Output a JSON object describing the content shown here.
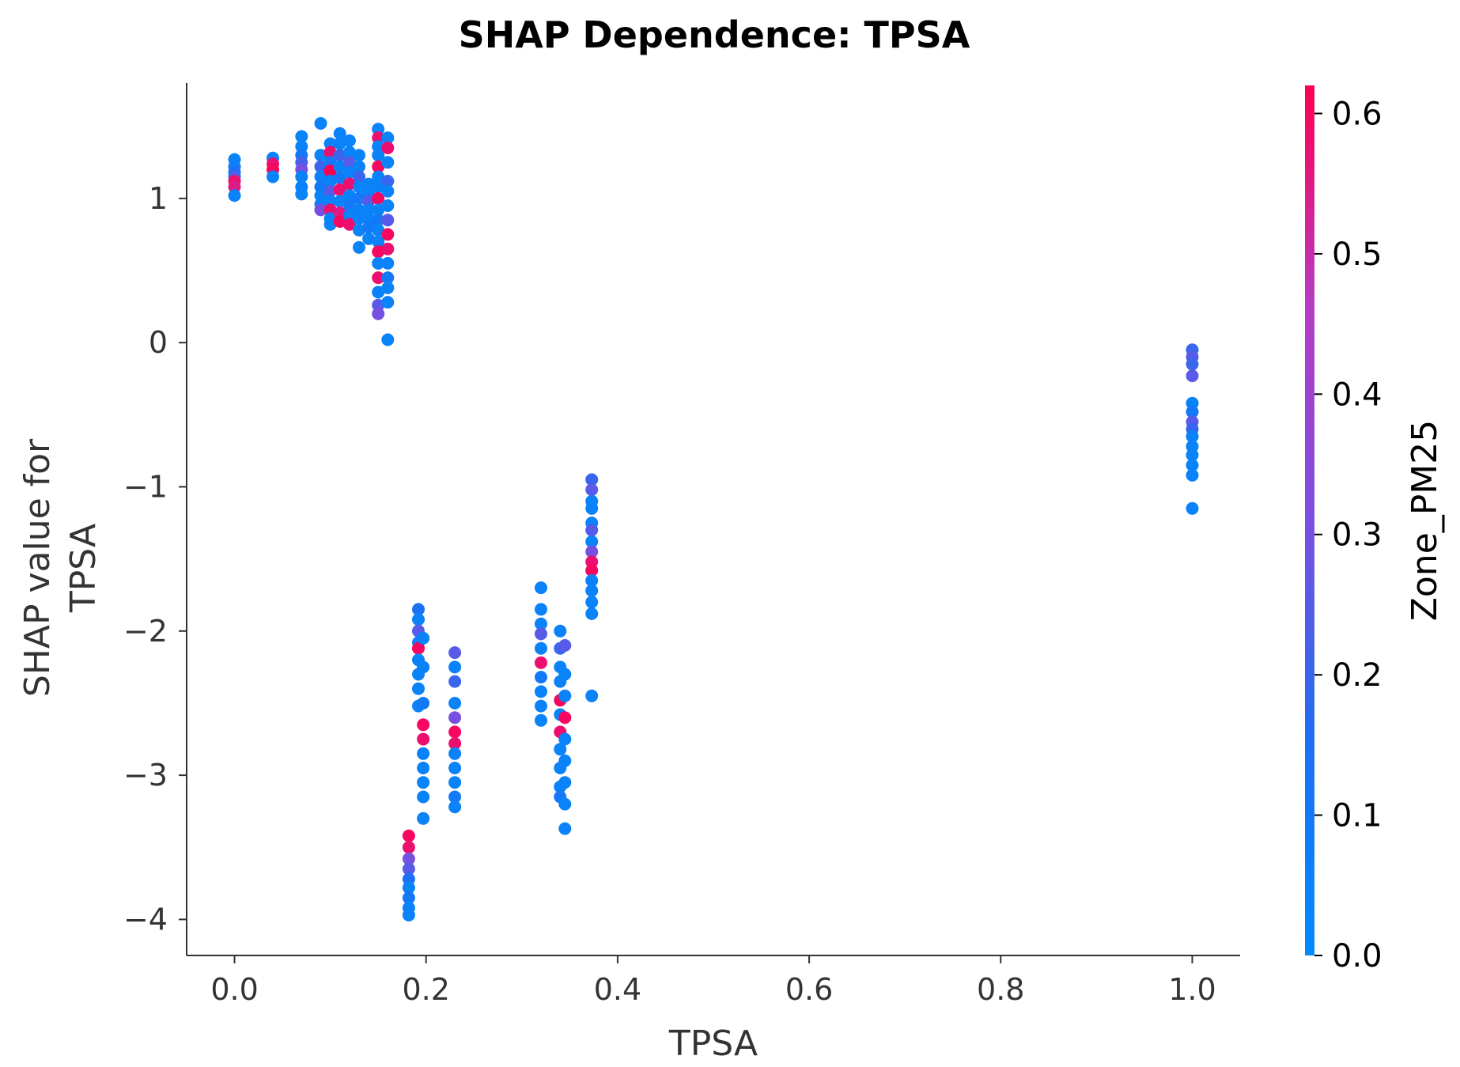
{
  "chart_data": {
    "type": "scatter",
    "title": "SHAP Dependence: TPSA",
    "xlabel": "TPSA",
    "ylabel_lines": [
      "SHAP value for",
      "TPSA"
    ],
    "xlim": [
      -0.05,
      1.05
    ],
    "ylim": [
      -4.25,
      1.8
    ],
    "xticks": [
      {
        "value": 0.0,
        "label": "0.0"
      },
      {
        "value": 0.2,
        "label": "0.2"
      },
      {
        "value": 0.4,
        "label": "0.4"
      },
      {
        "value": 0.6,
        "label": "0.6"
      },
      {
        "value": 0.8,
        "label": "0.8"
      },
      {
        "value": 1.0,
        "label": "1.0"
      }
    ],
    "yticks": [
      {
        "value": 1,
        "label": "1"
      },
      {
        "value": 0,
        "label": "0"
      },
      {
        "value": -1,
        "label": "−1"
      },
      {
        "value": -2,
        "label": "−2"
      },
      {
        "value": -3,
        "label": "−3"
      },
      {
        "value": -4,
        "label": "−4"
      }
    ],
    "grid": false,
    "colorbar": {
      "label": "Zone_PM25",
      "range": [
        0.0,
        0.62
      ],
      "ticks": [
        {
          "value": 0.0,
          "label": "0.0"
        },
        {
          "value": 0.1,
          "label": "0.1"
        },
        {
          "value": 0.2,
          "label": "0.2"
        },
        {
          "value": 0.3,
          "label": "0.3"
        },
        {
          "value": 0.4,
          "label": "0.4"
        },
        {
          "value": 0.5,
          "label": "0.5"
        },
        {
          "value": 0.6,
          "label": "0.6"
        }
      ],
      "colors": [
        "#008bfb",
        "#1e6ff3",
        "#7c4fe0",
        "#b73bc4",
        "#ff0051"
      ]
    },
    "points": [
      [
        0.0,
        1.27,
        0.05
      ],
      [
        0.0,
        1.22,
        0.08
      ],
      [
        0.0,
        1.18,
        0.15
      ],
      [
        0.0,
        1.15,
        0.22
      ],
      [
        0.0,
        1.12,
        0.58
      ],
      [
        0.0,
        1.08,
        0.55
      ],
      [
        0.0,
        1.02,
        0.05
      ],
      [
        0.04,
        1.28,
        0.05
      ],
      [
        0.04,
        1.24,
        0.58
      ],
      [
        0.04,
        1.2,
        0.6
      ],
      [
        0.04,
        1.15,
        0.05
      ],
      [
        0.07,
        1.43,
        0.05
      ],
      [
        0.07,
        1.36,
        0.05
      ],
      [
        0.07,
        1.3,
        0.1
      ],
      [
        0.07,
        1.25,
        0.22
      ],
      [
        0.07,
        1.2,
        0.3
      ],
      [
        0.07,
        1.15,
        0.05
      ],
      [
        0.07,
        1.08,
        0.05
      ],
      [
        0.07,
        1.03,
        0.05
      ],
      [
        0.09,
        1.52,
        0.05
      ],
      [
        0.09,
        1.3,
        0.05
      ],
      [
        0.09,
        1.22,
        0.2
      ],
      [
        0.09,
        1.15,
        0.05
      ],
      [
        0.09,
        1.08,
        0.1
      ],
      [
        0.09,
        1.02,
        0.05
      ],
      [
        0.09,
        0.96,
        0.05
      ],
      [
        0.09,
        0.92,
        0.3
      ],
      [
        0.1,
        1.38,
        0.05
      ],
      [
        0.1,
        1.32,
        0.58
      ],
      [
        0.1,
        1.25,
        0.1
      ],
      [
        0.1,
        1.19,
        0.62
      ],
      [
        0.1,
        1.12,
        0.05
      ],
      [
        0.1,
        1.05,
        0.25
      ],
      [
        0.1,
        0.98,
        0.05
      ],
      [
        0.1,
        0.92,
        0.58
      ],
      [
        0.1,
        0.86,
        0.05
      ],
      [
        0.1,
        0.82,
        0.05
      ],
      [
        0.11,
        1.45,
        0.05
      ],
      [
        0.11,
        1.38,
        0.05
      ],
      [
        0.11,
        1.3,
        0.2
      ],
      [
        0.11,
        1.22,
        0.05
      ],
      [
        0.11,
        1.14,
        0.1
      ],
      [
        0.11,
        1.06,
        0.58
      ],
      [
        0.11,
        0.98,
        0.05
      ],
      [
        0.11,
        0.9,
        0.55
      ],
      [
        0.11,
        0.84,
        0.6
      ],
      [
        0.12,
        1.4,
        0.05
      ],
      [
        0.12,
        1.32,
        0.05
      ],
      [
        0.12,
        1.25,
        0.25
      ],
      [
        0.12,
        1.18,
        0.05
      ],
      [
        0.12,
        1.1,
        0.58
      ],
      [
        0.12,
        1.02,
        0.05
      ],
      [
        0.12,
        0.95,
        0.1
      ],
      [
        0.12,
        0.88,
        0.05
      ],
      [
        0.12,
        0.82,
        0.58
      ],
      [
        0.13,
        1.3,
        0.05
      ],
      [
        0.13,
        1.22,
        0.05
      ],
      [
        0.13,
        1.15,
        0.2
      ],
      [
        0.13,
        1.08,
        0.05
      ],
      [
        0.13,
        1.0,
        0.1
      ],
      [
        0.13,
        0.92,
        0.05
      ],
      [
        0.13,
        0.86,
        0.05
      ],
      [
        0.13,
        0.78,
        0.05
      ],
      [
        0.13,
        0.66,
        0.05
      ],
      [
        0.14,
        1.1,
        0.05
      ],
      [
        0.14,
        1.04,
        0.05
      ],
      [
        0.14,
        0.98,
        0.25
      ],
      [
        0.14,
        0.92,
        0.05
      ],
      [
        0.14,
        0.86,
        0.05
      ],
      [
        0.14,
        0.8,
        0.1
      ],
      [
        0.14,
        0.72,
        0.05
      ],
      [
        0.15,
        1.48,
        0.05
      ],
      [
        0.15,
        1.42,
        0.58
      ],
      [
        0.15,
        1.36,
        0.05
      ],
      [
        0.15,
        1.3,
        0.05
      ],
      [
        0.15,
        1.22,
        0.6
      ],
      [
        0.15,
        1.15,
        0.05
      ],
      [
        0.15,
        1.08,
        0.05
      ],
      [
        0.15,
        1.0,
        0.6
      ],
      [
        0.15,
        0.92,
        0.05
      ],
      [
        0.15,
        0.85,
        0.1
      ],
      [
        0.15,
        0.78,
        0.05
      ],
      [
        0.15,
        0.7,
        0.05
      ],
      [
        0.15,
        0.63,
        0.6
      ],
      [
        0.15,
        0.55,
        0.05
      ],
      [
        0.15,
        0.45,
        0.58
      ],
      [
        0.15,
        0.35,
        0.05
      ],
      [
        0.15,
        0.26,
        0.25
      ],
      [
        0.15,
        0.2,
        0.3
      ],
      [
        0.16,
        1.42,
        0.05
      ],
      [
        0.16,
        1.35,
        0.58
      ],
      [
        0.16,
        1.25,
        0.05
      ],
      [
        0.16,
        1.12,
        0.2
      ],
      [
        0.16,
        1.05,
        0.05
      ],
      [
        0.16,
        0.95,
        0.05
      ],
      [
        0.16,
        0.85,
        0.25
      ],
      [
        0.16,
        0.75,
        0.6
      ],
      [
        0.16,
        0.65,
        0.58
      ],
      [
        0.16,
        0.55,
        0.05
      ],
      [
        0.16,
        0.45,
        0.1
      ],
      [
        0.16,
        0.38,
        0.05
      ],
      [
        0.16,
        0.28,
        0.05
      ],
      [
        0.16,
        0.02,
        0.05
      ],
      [
        0.182,
        -3.42,
        0.6
      ],
      [
        0.182,
        -3.5,
        0.58
      ],
      [
        0.182,
        -3.58,
        0.3
      ],
      [
        0.182,
        -3.65,
        0.25
      ],
      [
        0.182,
        -3.72,
        0.15
      ],
      [
        0.182,
        -3.78,
        0.05
      ],
      [
        0.182,
        -3.85,
        0.1
      ],
      [
        0.182,
        -3.92,
        0.05
      ],
      [
        0.182,
        -3.97,
        0.05
      ],
      [
        0.192,
        -1.85,
        0.15
      ],
      [
        0.192,
        -1.92,
        0.05
      ],
      [
        0.192,
        -2.0,
        0.25
      ],
      [
        0.192,
        -2.08,
        0.05
      ],
      [
        0.192,
        -2.12,
        0.6
      ],
      [
        0.192,
        -2.2,
        0.05
      ],
      [
        0.192,
        -2.3,
        0.05
      ],
      [
        0.192,
        -2.4,
        0.05
      ],
      [
        0.192,
        -2.52,
        0.05
      ],
      [
        0.197,
        -2.05,
        0.05
      ],
      [
        0.197,
        -2.25,
        0.05
      ],
      [
        0.197,
        -2.5,
        0.1
      ],
      [
        0.197,
        -2.65,
        0.6
      ],
      [
        0.197,
        -2.75,
        0.58
      ],
      [
        0.197,
        -2.85,
        0.05
      ],
      [
        0.197,
        -2.95,
        0.05
      ],
      [
        0.197,
        -3.05,
        0.05
      ],
      [
        0.197,
        -3.15,
        0.05
      ],
      [
        0.197,
        -3.3,
        0.05
      ],
      [
        0.23,
        -2.15,
        0.25
      ],
      [
        0.23,
        -2.25,
        0.05
      ],
      [
        0.23,
        -2.35,
        0.2
      ],
      [
        0.23,
        -2.5,
        0.05
      ],
      [
        0.23,
        -2.6,
        0.3
      ],
      [
        0.23,
        -2.7,
        0.6
      ],
      [
        0.23,
        -2.78,
        0.58
      ],
      [
        0.23,
        -2.85,
        0.05
      ],
      [
        0.23,
        -2.95,
        0.05
      ],
      [
        0.23,
        -3.05,
        0.05
      ],
      [
        0.23,
        -3.15,
        0.1
      ],
      [
        0.23,
        -3.22,
        0.05
      ],
      [
        0.32,
        -1.7,
        0.05
      ],
      [
        0.32,
        -1.85,
        0.05
      ],
      [
        0.32,
        -1.95,
        0.05
      ],
      [
        0.32,
        -2.02,
        0.25
      ],
      [
        0.32,
        -2.12,
        0.05
      ],
      [
        0.32,
        -2.22,
        0.58
      ],
      [
        0.32,
        -2.32,
        0.1
      ],
      [
        0.32,
        -2.42,
        0.05
      ],
      [
        0.32,
        -2.52,
        0.05
      ],
      [
        0.32,
        -2.62,
        0.05
      ],
      [
        0.34,
        -2.0,
        0.05
      ],
      [
        0.34,
        -2.12,
        0.2
      ],
      [
        0.34,
        -2.25,
        0.05
      ],
      [
        0.34,
        -2.35,
        0.05
      ],
      [
        0.34,
        -2.48,
        0.6
      ],
      [
        0.34,
        -2.58,
        0.05
      ],
      [
        0.34,
        -2.7,
        0.58
      ],
      [
        0.34,
        -2.82,
        0.05
      ],
      [
        0.34,
        -2.95,
        0.05
      ],
      [
        0.34,
        -3.08,
        0.05
      ],
      [
        0.34,
        -3.15,
        0.1
      ],
      [
        0.345,
        -2.1,
        0.25
      ],
      [
        0.345,
        -2.3,
        0.05
      ],
      [
        0.345,
        -2.45,
        0.05
      ],
      [
        0.345,
        -2.6,
        0.6
      ],
      [
        0.345,
        -2.75,
        0.05
      ],
      [
        0.345,
        -2.9,
        0.05
      ],
      [
        0.345,
        -3.05,
        0.05
      ],
      [
        0.345,
        -3.2,
        0.05
      ],
      [
        0.345,
        -3.37,
        0.05
      ],
      [
        0.373,
        -0.95,
        0.2
      ],
      [
        0.373,
        -1.02,
        0.25
      ],
      [
        0.373,
        -1.1,
        0.05
      ],
      [
        0.373,
        -1.15,
        0.05
      ],
      [
        0.373,
        -1.25,
        0.05
      ],
      [
        0.373,
        -1.3,
        0.25
      ],
      [
        0.373,
        -1.38,
        0.05
      ],
      [
        0.373,
        -1.45,
        0.3
      ],
      [
        0.373,
        -1.52,
        0.58
      ],
      [
        0.373,
        -1.58,
        0.6
      ],
      [
        0.373,
        -1.65,
        0.05
      ],
      [
        0.373,
        -1.72,
        0.05
      ],
      [
        0.373,
        -1.8,
        0.05
      ],
      [
        0.373,
        -1.88,
        0.05
      ],
      [
        0.373,
        -2.45,
        0.05
      ],
      [
        1.0,
        -0.05,
        0.2
      ],
      [
        1.0,
        -0.1,
        0.25
      ],
      [
        1.0,
        -0.15,
        0.2
      ],
      [
        1.0,
        -0.23,
        0.25
      ],
      [
        1.0,
        -0.42,
        0.05
      ],
      [
        1.0,
        -0.48,
        0.1
      ],
      [
        1.0,
        -0.55,
        0.25
      ],
      [
        1.0,
        -0.6,
        0.2
      ],
      [
        1.0,
        -0.65,
        0.05
      ],
      [
        1.0,
        -0.72,
        0.05
      ],
      [
        1.0,
        -0.78,
        0.05
      ],
      [
        1.0,
        -0.85,
        0.05
      ],
      [
        1.0,
        -0.92,
        0.05
      ],
      [
        1.0,
        -1.15,
        0.05
      ]
    ]
  }
}
